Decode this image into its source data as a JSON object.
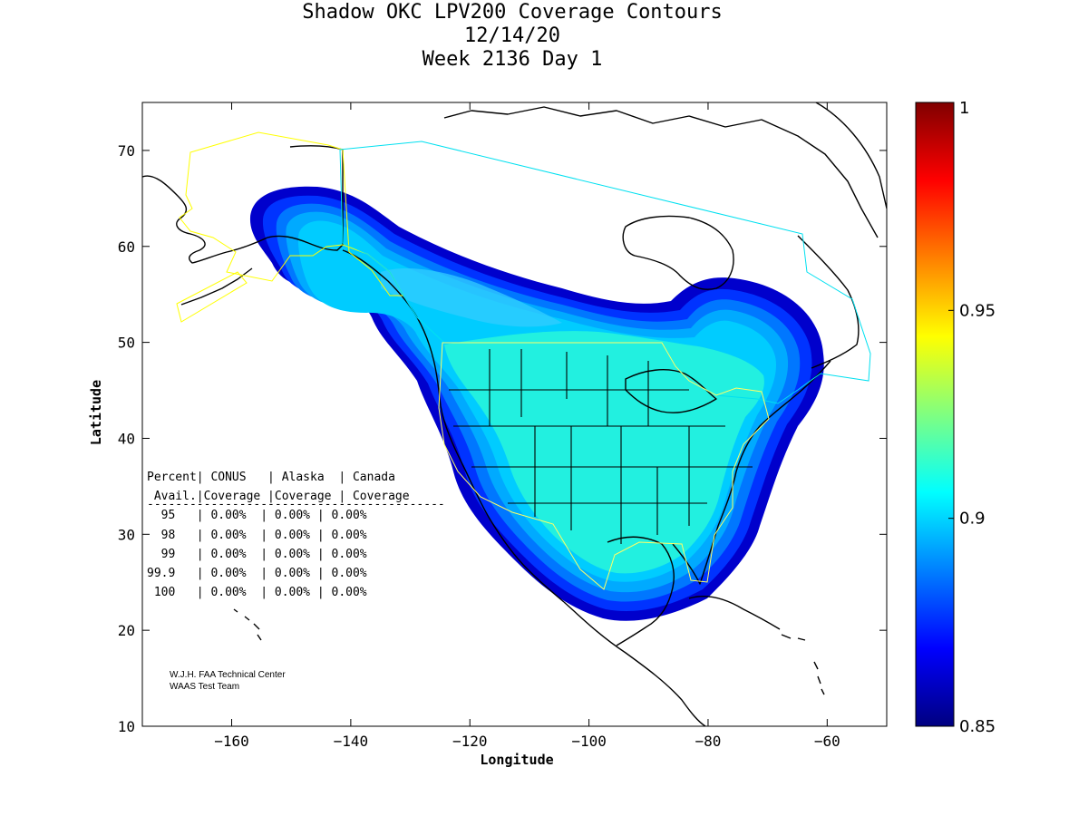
{
  "title": {
    "line1": "Shadow OKC LPV200 Coverage Contours",
    "line2": "12/14/20",
    "line3": "Week 2136 Day 1"
  },
  "axes": {
    "xlabel": "Longitude",
    "ylabel": "Latitude",
    "xlim": [
      -175,
      -50
    ],
    "ylim": [
      10,
      75
    ],
    "xticks": [
      -160,
      -140,
      -120,
      -100,
      -80,
      -60
    ],
    "yticks": [
      10,
      20,
      30,
      40,
      50,
      60,
      70
    ]
  },
  "colorbar": {
    "min": 0.85,
    "max": 1,
    "ticks": [
      "0.85",
      "0.9",
      "0.95",
      "1"
    ],
    "tick_values": [
      0.85,
      0.9,
      0.95,
      1.0
    ],
    "colormap": [
      "#000080",
      "#0000ff",
      "#0080ff",
      "#00ffff",
      "#80ff80",
      "#ffff00",
      "#ff8000",
      "#ff0000",
      "#800000"
    ]
  },
  "stats_table": {
    "header1": "Percent| CONUS   | Alaska  | Canada",
    "header2": " Avail.|Coverage |Coverage | Coverage",
    "separator": "------------------------------------------",
    "rows": [
      "  95   | 0.00%  | 0.00% | 0.00%",
      "  98   | 0.00%  | 0.00% | 0.00%",
      "  99   | 0.00%  | 0.00% | 0.00%",
      "99.9   | 0.00%  | 0.00% | 0.00%",
      " 100   | 0.00%  | 0.00% | 0.00%"
    ]
  },
  "credit": {
    "line1": "W.J.H. FAA Technical Center",
    "line2": "WAAS Test Team"
  },
  "colors": {
    "outer_band": "#0000cc",
    "band2": "#0033ff",
    "band3": "#0077ff",
    "band4": "#00aaff",
    "band5": "#00ccff",
    "interior": "#22f0e0",
    "coastline": "#000000",
    "alaska_boundary": "#ffff00",
    "canada_boundary": "#00e0f0",
    "conus_boundary": "#ffff66"
  }
}
